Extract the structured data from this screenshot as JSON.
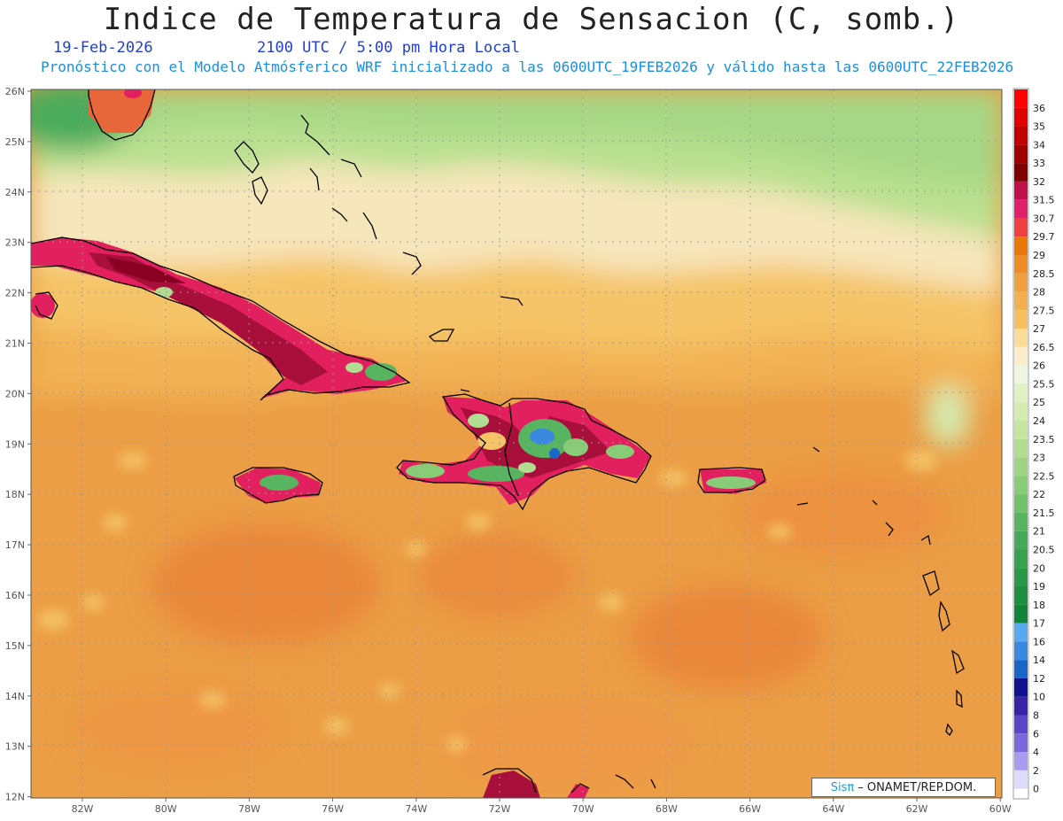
{
  "header": {
    "title": "Indice de Temperatura de Sensacion (C, somb.)",
    "date": "19-Feb-2026",
    "time": "2100 UTC / 5:00 pm Hora Local",
    "model_line": "Pronóstico con el Modelo Atmósferico WRF inicializado a las 0600UTC_19FEB2026 y válido hasta las  0600UTC_22FEB2026"
  },
  "axes": {
    "lat_labels": [
      "26N",
      "25N",
      "24N",
      "23N",
      "22N",
      "21N",
      "20N",
      "19N",
      "18N",
      "17N",
      "16N",
      "15N",
      "14N",
      "13N",
      "12N"
    ],
    "lon_labels": [
      "82W",
      "80W",
      "78W",
      "76W",
      "74W",
      "72W",
      "70W",
      "68W",
      "66W",
      "64W",
      "62W",
      "60W"
    ]
  },
  "legend": {
    "levels": [
      {
        "label": "36",
        "color": "#ff0000"
      },
      {
        "label": "35",
        "color": "#e00000"
      },
      {
        "label": "34",
        "color": "#c00000"
      },
      {
        "label": "33",
        "color": "#a00000"
      },
      {
        "label": "32",
        "color": "#800000"
      },
      {
        "label": "31.5",
        "color": "#c0104a"
      },
      {
        "label": "30.7",
        "color": "#e0206a"
      },
      {
        "label": "29.7",
        "color": "#ee4040"
      },
      {
        "label": "29",
        "color": "#e8780a"
      },
      {
        "label": "28.5",
        "color": "#ee8c28"
      },
      {
        "label": "28",
        "color": "#f0a040"
      },
      {
        "label": "27.5",
        "color": "#f2b050"
      },
      {
        "label": "27",
        "color": "#f5c060"
      },
      {
        "label": "26.5",
        "color": "#f8dc98"
      },
      {
        "label": "26",
        "color": "#faeccc"
      },
      {
        "label": "25.5",
        "color": "#eef5e0"
      },
      {
        "label": "25",
        "color": "#e2f0c4"
      },
      {
        "label": "24",
        "color": "#d4ecb0"
      },
      {
        "label": "23.5",
        "color": "#c4e6a0"
      },
      {
        "label": "23",
        "color": "#b2dc92"
      },
      {
        "label": "22.5",
        "color": "#9ed484"
      },
      {
        "label": "22",
        "color": "#88cc78"
      },
      {
        "label": "21.5",
        "color": "#70c06c"
      },
      {
        "label": "21",
        "color": "#58b460"
      },
      {
        "label": "20.5",
        "color": "#46a858"
      },
      {
        "label": "20",
        "color": "#38a050"
      },
      {
        "label": "19",
        "color": "#2a9848"
      },
      {
        "label": "18",
        "color": "#1e8e40"
      },
      {
        "label": "17",
        "color": "#12843a"
      },
      {
        "label": "16",
        "color": "#5aa8f0"
      },
      {
        "label": "14",
        "color": "#3a88e0"
      },
      {
        "label": "12",
        "color": "#1a66c8"
      },
      {
        "label": "10",
        "color": "#101090"
      },
      {
        "label": "8",
        "color": "#3a22a8"
      },
      {
        "label": "6",
        "color": "#5a44c8"
      },
      {
        "label": "4",
        "color": "#7a68dc"
      },
      {
        "label": "2",
        "color": "#a89cf0"
      },
      {
        "label": "0",
        "color": "#dcdcfa"
      }
    ]
  },
  "credit": {
    "brand": "Sisπ",
    "text": "– ONAMET/REP.DOM."
  }
}
